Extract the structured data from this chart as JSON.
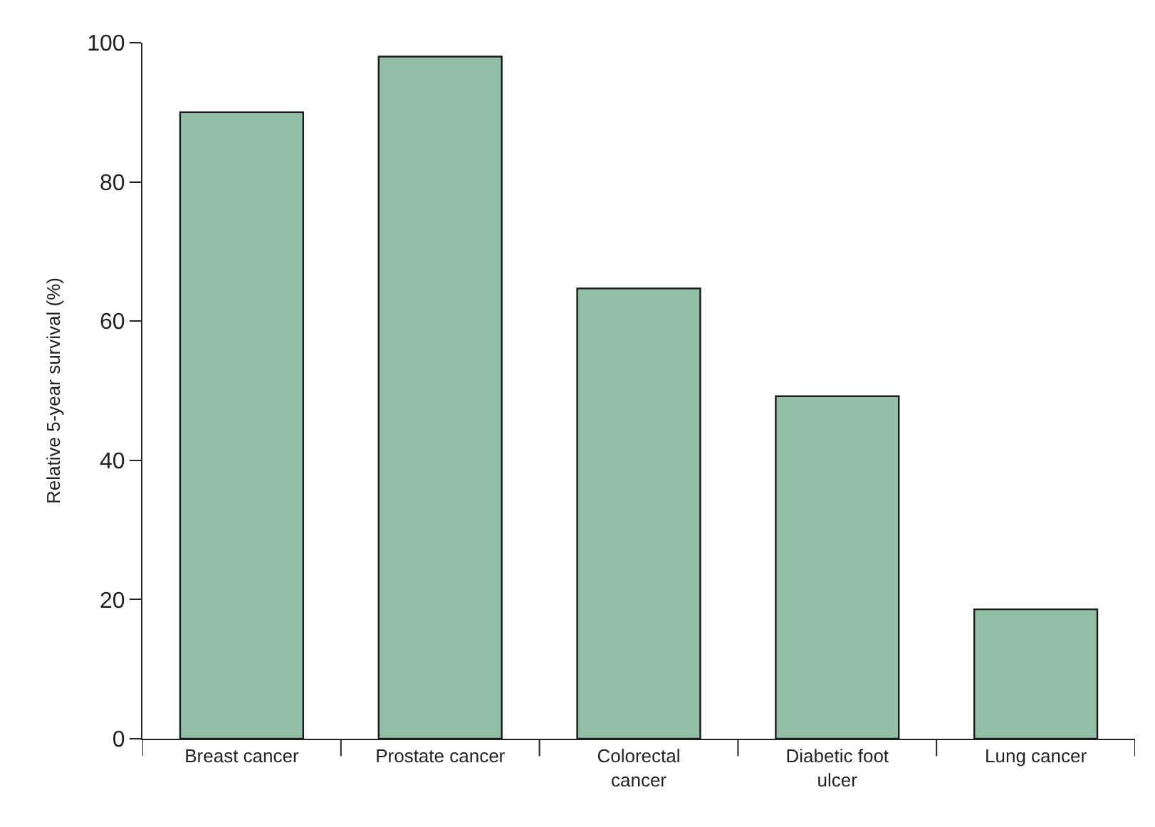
{
  "chart_data": {
    "type": "bar",
    "ylabel": "Relative 5-year survival (%)",
    "categories": [
      "Breast cancer",
      "Prostate cancer",
      "Colorectal\ncancer",
      "Diabetic foot\nulcer",
      "Lung cancer"
    ],
    "values": [
      90,
      98,
      64.7,
      49.2,
      18.6
    ],
    "color": "#93bfa6",
    "ylim": [
      0,
      100
    ],
    "yticks": [
      0,
      20,
      40,
      60,
      80,
      100
    ]
  }
}
